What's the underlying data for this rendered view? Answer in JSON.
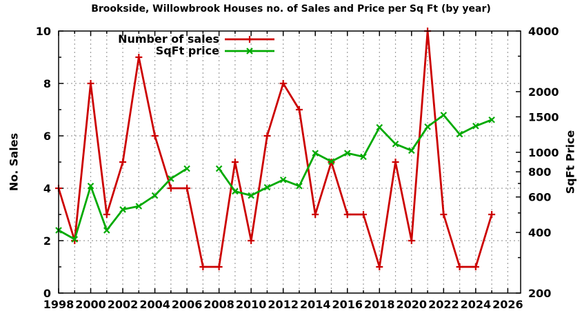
{
  "page": {
    "background": "#ffffff"
  },
  "chart_data": {
    "type": "line",
    "title": "Brookside, Willowbrook Houses no. of Sales and Price per Sq Ft (by year)",
    "x": [
      1998,
      1999,
      2000,
      2001,
      2002,
      2003,
      2004,
      2005,
      2006,
      2007,
      2008,
      2009,
      2010,
      2011,
      2012,
      2013,
      2014,
      2015,
      2016,
      2017,
      2018,
      2019,
      2020,
      2021,
      2022,
      2023,
      2024,
      2025
    ],
    "series": [
      {
        "name": "Number of sales",
        "axis": "left",
        "color": "#cc0000",
        "marker": "plus",
        "values": [
          4,
          2,
          8,
          3,
          5,
          9,
          6,
          4,
          4,
          1,
          1,
          5,
          2,
          6,
          8,
          7,
          3,
          5,
          3,
          3,
          1,
          5,
          2,
          10,
          3,
          1,
          1,
          3
        ]
      },
      {
        "name": "SqFt price",
        "axis": "right",
        "color": "#00aa00",
        "marker": "cross",
        "values": [
          410,
          370,
          680,
          410,
          520,
          540,
          610,
          740,
          830,
          null,
          830,
          640,
          610,
          670,
          730,
          680,
          990,
          900,
          990,
          950,
          1330,
          1100,
          1020,
          1340,
          1530,
          1230,
          1350,
          1450
        ]
      }
    ],
    "x_axis": {
      "min": 1998,
      "max": 2026.8,
      "labeled_ticks": [
        1998,
        2000,
        2002,
        2004,
        2006,
        2008,
        2010,
        2012,
        2014,
        2016,
        2018,
        2020,
        2022,
        2024,
        2026
      ]
    },
    "left_axis": {
      "label": "No. Sales",
      "scale": "linear",
      "min": 0,
      "max": 10,
      "labeled_ticks": [
        0,
        2,
        4,
        6,
        8,
        10
      ],
      "minor_ticks": [
        1,
        3,
        5,
        7,
        9
      ]
    },
    "right_axis": {
      "label": "SqFt Price",
      "scale": "log",
      "min": 200,
      "max": 4000,
      "labeled_ticks": [
        200,
        400,
        600,
        800,
        1000,
        1500,
        2000,
        4000
      ],
      "minor_ticks": [
        300,
        500,
        700,
        900,
        3000
      ]
    },
    "grid": {
      "style": "dashed",
      "color": "#9c9c9c",
      "x_every_year": true,
      "y_at": [
        2,
        4,
        6,
        8
      ]
    },
    "legend": {
      "position": "top-left-inside"
    },
    "border_color": "#000000"
  }
}
